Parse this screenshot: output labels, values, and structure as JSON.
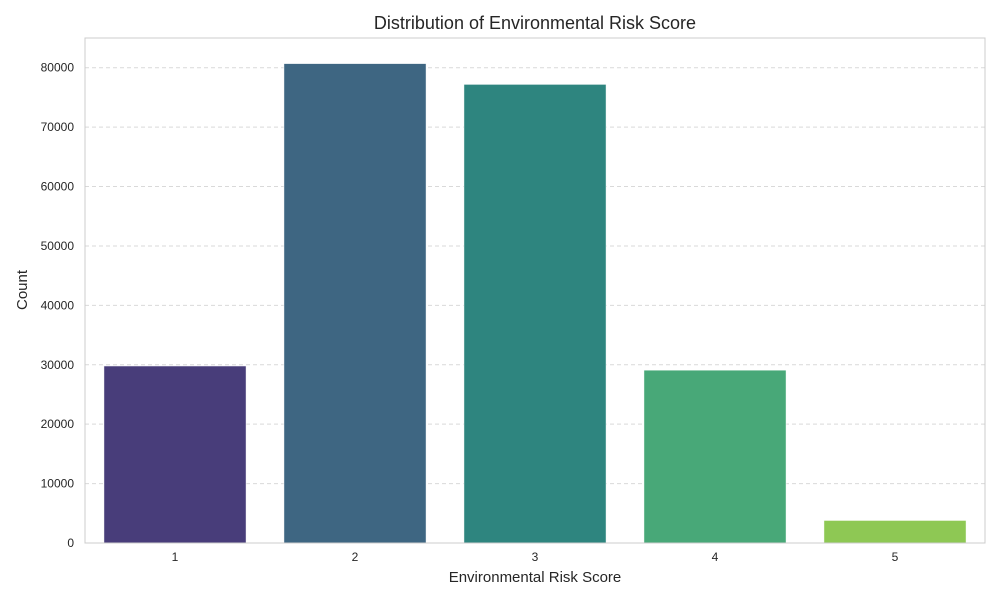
{
  "chart_data": {
    "type": "bar",
    "title": "Distribution of Environmental Risk Score",
    "xlabel": "Environmental Risk Score",
    "ylabel": "Count",
    "categories": [
      "1",
      "2",
      "3",
      "4",
      "5"
    ],
    "values": [
      29800,
      80700,
      77200,
      29100,
      3800
    ],
    "colors": [
      "#483D7A",
      "#3E6682",
      "#2E857F",
      "#48A878",
      "#8EC854"
    ],
    "ylim": [
      0,
      85000
    ],
    "yticks": [
      0,
      10000,
      20000,
      30000,
      40000,
      50000,
      60000,
      70000,
      80000
    ],
    "grid": "y-dashed",
    "legend": "none"
  }
}
